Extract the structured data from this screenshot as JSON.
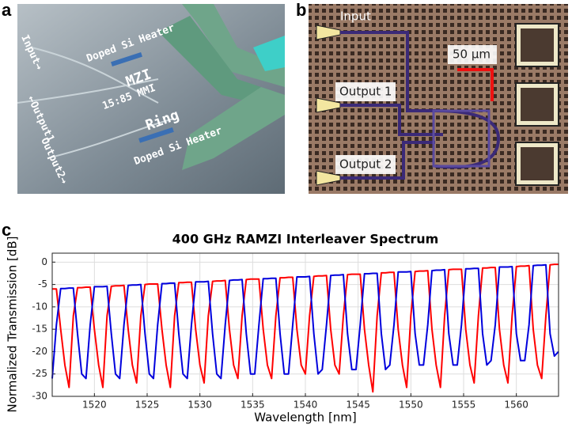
{
  "panel_labels": [
    "a",
    "b",
    "c"
  ],
  "panel_a": {
    "texts": [
      "Input→",
      "←Output1",
      "Output2→",
      "Doped Si Heater",
      "MZI",
      "15:85 MMI",
      "Ring",
      "Doped Si Heater"
    ]
  },
  "panel_b": {
    "texts": [
      "Input",
      "Output 1",
      "Output 2"
    ],
    "scale_bar": "50 µm"
  },
  "chart_data": {
    "type": "line",
    "title": "400 GHz RAMZI Interleaver Spectrum",
    "xlabel": "Wavelength [nm]",
    "ylabel": "Normalized Transmission [dB]",
    "x": [
      1516,
      1516.4,
      1516.8,
      1517.2,
      1517.6,
      1518,
      1518.4,
      1518.8,
      1519.2,
      1519.6,
      1520,
      1520.4,
      1520.8,
      1521.2,
      1521.6,
      1522,
      1522.4,
      1522.8,
      1523.2,
      1523.6,
      1524,
      1524.4,
      1524.8,
      1525.2,
      1525.6,
      1526,
      1526.4,
      1526.8,
      1527.2,
      1527.6,
      1528,
      1528.4,
      1528.8,
      1529.2,
      1529.6,
      1530,
      1530.4,
      1530.8,
      1531.2,
      1531.6,
      1532,
      1532.4,
      1532.8,
      1533.2,
      1533.6,
      1534,
      1534.4,
      1534.8,
      1535.2,
      1535.6,
      1536,
      1536.4,
      1536.8,
      1537.2,
      1537.6,
      1538,
      1538.4,
      1538.8,
      1539.2,
      1539.6,
      1540,
      1540.4,
      1540.8,
      1541.2,
      1541.6,
      1542,
      1542.4,
      1542.8,
      1543.2,
      1543.6,
      1544,
      1544.4,
      1544.8,
      1545.2,
      1545.6,
      1546,
      1546.4,
      1546.8,
      1547.2,
      1547.6,
      1548,
      1548.4,
      1548.8,
      1549.2,
      1549.6,
      1550,
      1550.4,
      1550.8,
      1551.2,
      1551.6,
      1552,
      1552.4,
      1552.8,
      1553.2,
      1553.6,
      1554,
      1554.4,
      1554.8,
      1555.2,
      1555.6,
      1556,
      1556.4,
      1556.8,
      1557.2,
      1557.6,
      1558,
      1558.4,
      1558.8,
      1559.2,
      1559.6,
      1560,
      1560.4,
      1560.8,
      1561.2,
      1561.6,
      1562,
      1562.4,
      1562.8,
      1563.2,
      1563.6,
      1564
    ],
    "series": [
      {
        "color": "#ff0000",
        "values": [
          -6.0,
          -6.0,
          -15,
          -23,
          -28,
          -12,
          -5.7,
          -5.7,
          -5.6,
          -5.6,
          -15,
          -23,
          -28,
          -12,
          -5.4,
          -5.3,
          -5.3,
          -5.2,
          -15,
          -23,
          -27,
          -12,
          -5.0,
          -4.9,
          -4.9,
          -4.9,
          -15,
          -23,
          -28,
          -12,
          -4.6,
          -4.6,
          -4.5,
          -4.5,
          -15,
          -23,
          -27,
          -12,
          -4.3,
          -4.2,
          -4.2,
          -4.1,
          -15,
          -23,
          -26,
          -12,
          -3.9,
          -3.8,
          -3.8,
          -3.8,
          -15,
          -23,
          -26,
          -12,
          -3.5,
          -3.5,
          -3.4,
          -3.4,
          -15,
          -23,
          -25,
          -12,
          -3.2,
          -3.1,
          -3.1,
          -3.0,
          -15,
          -23,
          -25,
          -12,
          -2.8,
          -2.7,
          -2.7,
          -2.7,
          -15,
          -23,
          -29,
          -12,
          -2.4,
          -2.4,
          -2.3,
          -2.3,
          -15,
          -23,
          -28,
          -12,
          -2.1,
          -2.0,
          -2.0,
          -1.9,
          -15,
          -23,
          -28,
          -12,
          -1.7,
          -1.6,
          -1.6,
          -1.6,
          -15,
          -23,
          -27,
          -12,
          -1.3,
          -1.3,
          -1.2,
          -1.2,
          -15,
          -23,
          -27,
          -12,
          -1.0,
          -0.9,
          -0.9,
          -0.8,
          -15,
          -23,
          -26,
          -12,
          -0.6,
          -0.5,
          -0.5
        ]
      },
      {
        "color": "#0000dd",
        "values": [
          -26,
          -14,
          -5.9,
          -5.9,
          -5.8,
          -5.8,
          -16,
          -25,
          -26,
          -14,
          -5.5,
          -5.5,
          -5.5,
          -5.4,
          -16,
          -25,
          -26,
          -14,
          -5.2,
          -5.1,
          -5.1,
          -5.0,
          -16,
          -25,
          -26,
          -14,
          -4.8,
          -4.8,
          -4.7,
          -4.7,
          -16,
          -25,
          -26,
          -14,
          -4.4,
          -4.4,
          -4.4,
          -4.3,
          -16,
          -25,
          -26,
          -14,
          -4.1,
          -4.0,
          -4.0,
          -3.9,
          -16,
          -25,
          -25,
          -14,
          -3.7,
          -3.7,
          -3.6,
          -3.6,
          -16,
          -25,
          -25,
          -14,
          -3.3,
          -3.3,
          -3.3,
          -3.2,
          -16,
          -25,
          -24,
          -14,
          -3.0,
          -2.9,
          -2.9,
          -2.8,
          -16,
          -24,
          -24,
          -14,
          -2.6,
          -2.6,
          -2.5,
          -2.5,
          -16,
          -24,
          -23,
          -14,
          -2.2,
          -2.2,
          -2.2,
          -2.1,
          -16,
          -23,
          -23,
          -14,
          -1.9,
          -1.8,
          -1.8,
          -1.7,
          -16,
          -23,
          -23,
          -14,
          -1.5,
          -1.5,
          -1.4,
          -1.4,
          -16,
          -23,
          -22,
          -14,
          -1.1,
          -1.1,
          -1.1,
          -1.0,
          -16,
          -22,
          -22,
          -14,
          -0.8,
          -0.7,
          -0.7,
          -0.6,
          -16,
          -21,
          -20
        ]
      }
    ],
    "xlim": [
      1516,
      1564
    ],
    "xticks": [
      1520,
      1525,
      1530,
      1535,
      1540,
      1545,
      1550,
      1555,
      1560
    ],
    "ylim": [
      -30,
      2
    ],
    "yticks": [
      -30,
      -25,
      -20,
      -15,
      -10,
      -5,
      0
    ],
    "grid": true
  }
}
